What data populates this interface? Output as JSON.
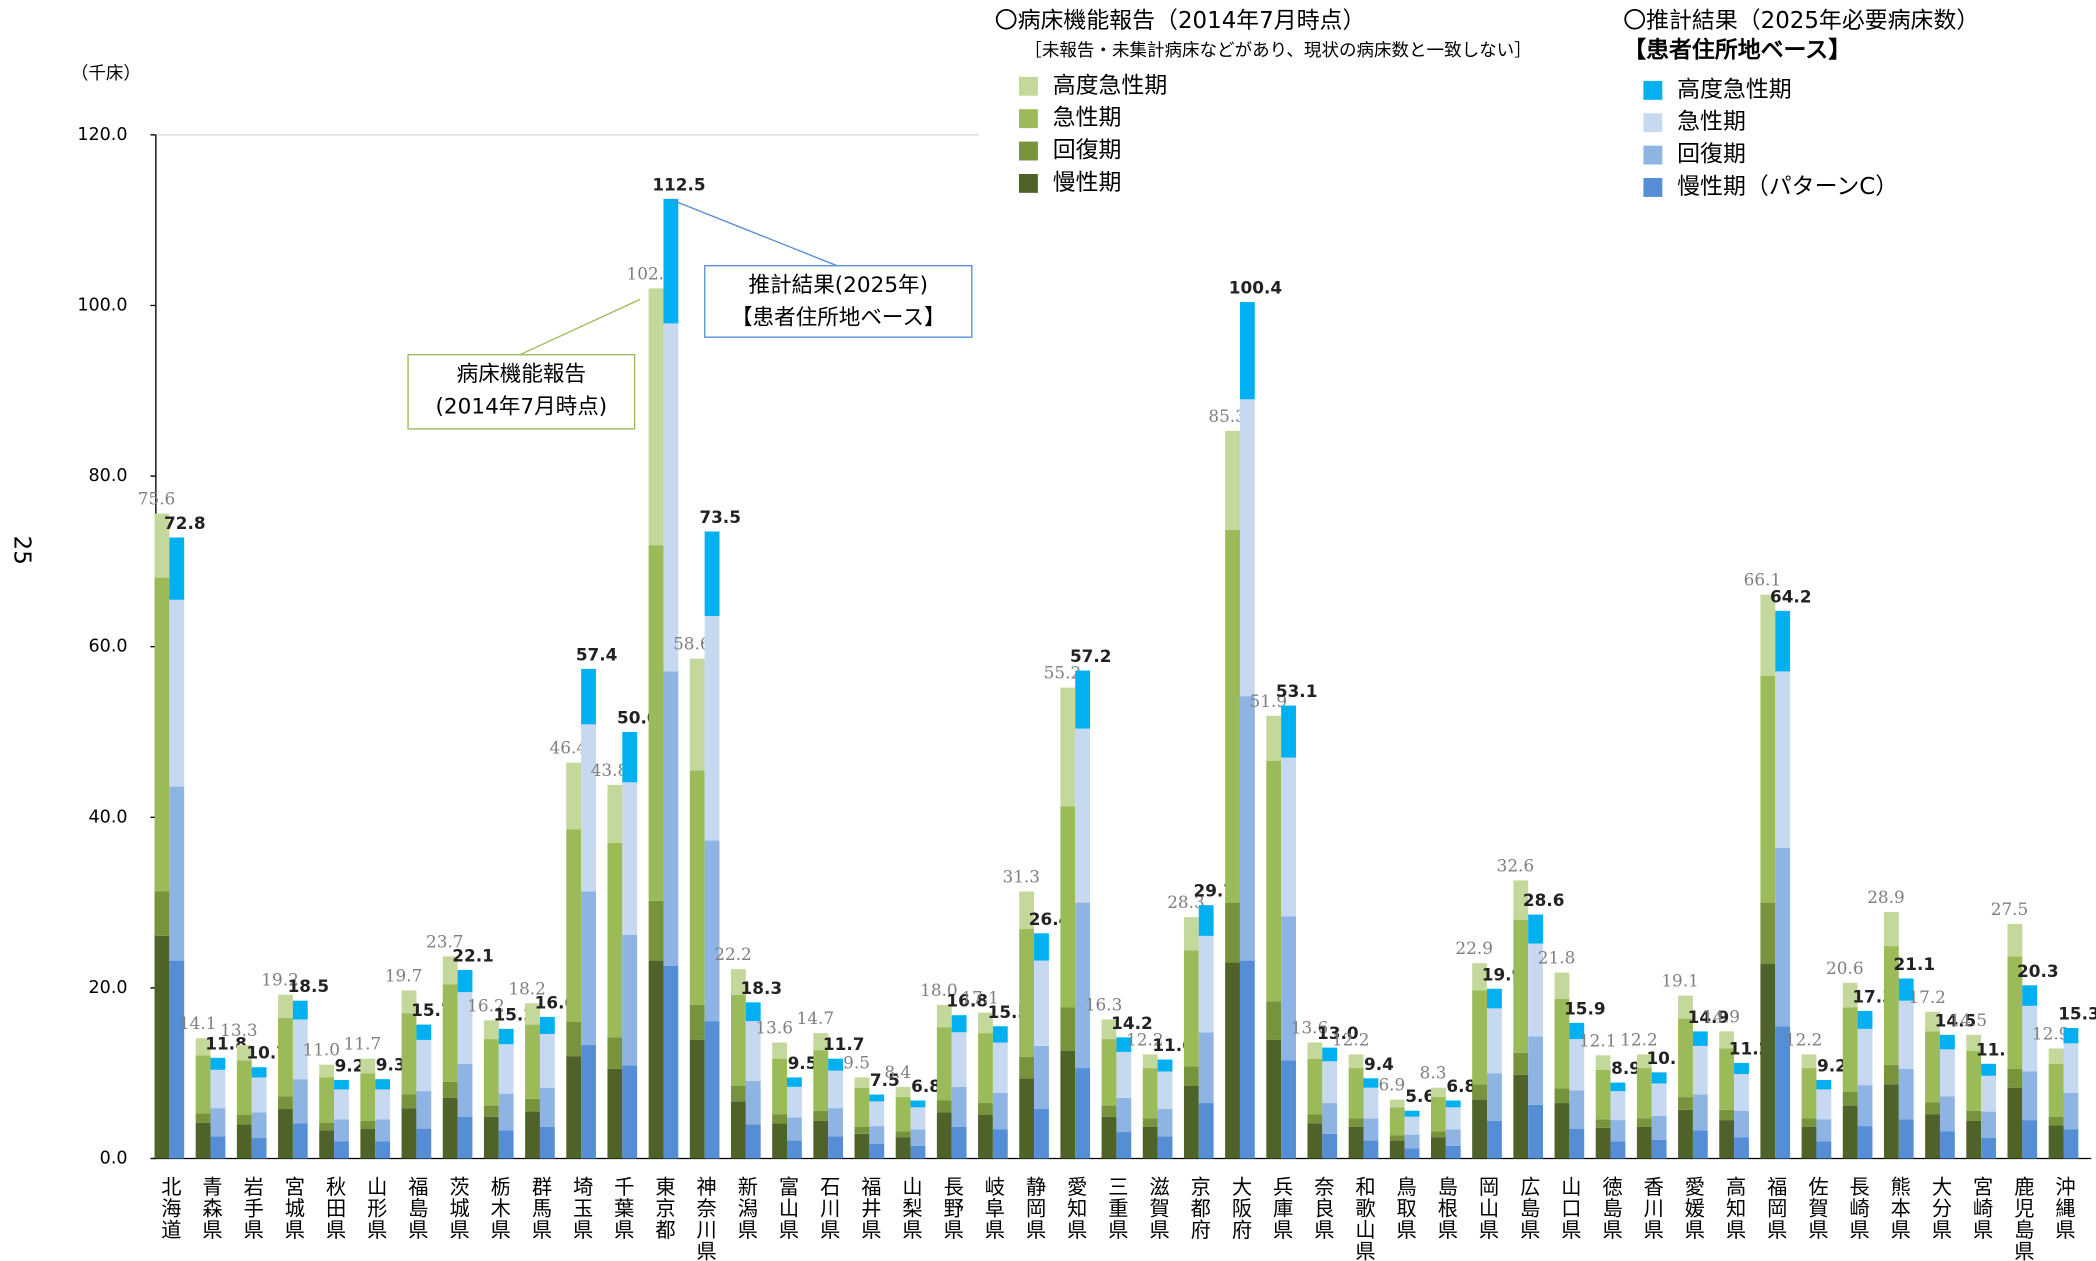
{
  "page_number": "25",
  "chart_data": {
    "type": "grouped-stacked-bar",
    "y_unit": "（千床）",
    "categories": [
      "北海道",
      "青森県",
      "岩手県",
      "宮城県",
      "秋田県",
      "山形県",
      "福島県",
      "茨城県",
      "栃木県",
      "群馬県",
      "埼玉県",
      "千葉県",
      "東京都",
      "神奈川県",
      "新潟県",
      "富山県",
      "石川県",
      "福井県",
      "山梨県",
      "長野県",
      "岐阜県",
      "静岡県",
      "愛知県",
      "三重県",
      "滋賀県",
      "京都府",
      "大阪府",
      "兵庫県",
      "奈良県",
      "和歌山県",
      "鳥取県",
      "島根県",
      "岡山県",
      "広島県",
      "山口県",
      "徳島県",
      "香川県",
      "愛媛県",
      "高知県",
      "福岡県",
      "佐賀県",
      "長崎県",
      "熊本県",
      "大分県",
      "宮崎県",
      "鹿児島県",
      "沖縄県"
    ],
    "ylim": [
      0,
      120
    ],
    "yticks": [
      {
        "value": 0,
        "label": "0.0"
      },
      {
        "value": 20,
        "label": "20.0"
      },
      {
        "value": 40,
        "label": "40.0"
      },
      {
        "value": 60,
        "label": "60.0"
      },
      {
        "value": 80,
        "label": "80.0"
      },
      {
        "value": 100,
        "label": "100.0"
      },
      {
        "value": 120,
        "label": "120.0"
      }
    ],
    "grid": false,
    "groups": [
      {
        "legend_title": "〇病床機能報告（2014年7月時点）",
        "legend_note": "［未報告・未集計病床などがあり、現状の病床数と一致しない］",
        "series": [
          {
            "name": "高度急性期",
            "color": "#c4d89b",
            "values": [
              7.5,
              2.0,
              1.8,
              2.7,
              1.5,
              1.7,
              2.7,
              3.3,
              2.2,
              2.5,
              7.8,
              6.8,
              30.1,
              13.1,
              3.0,
              1.9,
              2.0,
              1.2,
              1.2,
              2.6,
              2.4,
              4.4,
              13.9,
              2.3,
              1.6,
              3.9,
              11.6,
              5.3,
              1.9,
              1.6,
              0.9,
              1.1,
              3.2,
              4.6,
              3.1,
              1.7,
              1.6,
              2.7,
              2.0,
              9.5,
              1.6,
              2.9,
              4.0,
              2.3,
              1.9,
              3.8,
              1.8
            ]
          },
          {
            "name": "急性期",
            "color": "#9bbb59",
            "values": [
              36.8,
              6.8,
              6.4,
              9.2,
              5.3,
              5.6,
              9.5,
              11.4,
              7.8,
              8.7,
              22.6,
              22.8,
              41.7,
              27.5,
              10.7,
              6.5,
              7.1,
              4.6,
              4.0,
              8.6,
              8.2,
              15.0,
              23.6,
              7.8,
              5.9,
              13.6,
              43.7,
              28.2,
              6.5,
              5.9,
              3.3,
              4.0,
              11.0,
              15.6,
              10.5,
              5.8,
              5.9,
              9.2,
              7.2,
              26.6,
              5.9,
              9.9,
              13.9,
              8.3,
              7.0,
              13.2,
              6.2
            ]
          },
          {
            "name": "回復期",
            "color": "#77933c",
            "values": [
              5.2,
              1.1,
              1.1,
              1.5,
              0.9,
              0.9,
              1.6,
              1.9,
              1.3,
              1.5,
              4.0,
              3.7,
              7.0,
              4.1,
              1.8,
              1.1,
              1.2,
              0.8,
              0.7,
              1.4,
              1.4,
              2.5,
              5.1,
              1.3,
              1.0,
              2.3,
              7.0,
              4.5,
              1.1,
              1.0,
              0.6,
              0.7,
              1.8,
              2.6,
              1.7,
              1.0,
              1.0,
              1.5,
              1.2,
              7.2,
              1.0,
              1.6,
              2.3,
              1.4,
              1.2,
              2.2,
              1.0
            ]
          },
          {
            "name": "慢性期",
            "color": "#4f6228",
            "values": [
              26.1,
              4.2,
              4.0,
              5.8,
              3.3,
              3.5,
              5.9,
              7.1,
              4.9,
              5.5,
              12.0,
              10.5,
              23.2,
              13.9,
              6.7,
              4.1,
              4.4,
              2.9,
              2.5,
              5.4,
              5.1,
              9.4,
              12.6,
              4.9,
              3.7,
              8.5,
              23.0,
              13.9,
              4.1,
              3.7,
              2.1,
              2.5,
              6.9,
              9.8,
              6.5,
              3.6,
              3.7,
              5.7,
              4.5,
              22.8,
              3.7,
              6.2,
              8.7,
              5.2,
              4.4,
              8.3,
              3.9
            ]
          }
        ],
        "totals": {
          "values": [
            75.6,
            14.1,
            13.3,
            19.2,
            11,
            11.7,
            19.7,
            23.7,
            16.2,
            18.2,
            46.4,
            43.8,
            102,
            58.6,
            22.2,
            13.6,
            14.7,
            9.5,
            8.4,
            18,
            17.1,
            31.3,
            55.2,
            16.3,
            12.2,
            28.3,
            85.3,
            51.9,
            13.6,
            12.2,
            6.9,
            8.3,
            22.9,
            32.6,
            21.8,
            12.1,
            12.2,
            19.1,
            14.9,
            66.1,
            12.2,
            20.6,
            28.9,
            17.2,
            14.5,
            27.5,
            12.9
          ],
          "value_labels": [
            "75.6",
            "14.1",
            "13.3",
            "19.2",
            "11.0",
            "11.7",
            "19.7",
            "23.7",
            "16.2",
            "18.2",
            "46.4",
            "43.8",
            "102.0",
            "58.6",
            "22.2",
            "13.6",
            "14.7",
            "9.5",
            "8.4",
            "18.0",
            "17.1",
            "31.3",
            "55.2",
            "16.3",
            "12.2",
            "28.3",
            "85.3",
            "51.9",
            "13.6",
            "12.2",
            "6.9",
            "8.3",
            "22.9",
            "32.6",
            "21.8",
            "12.1",
            "12.2",
            "19.1",
            "14.9",
            "66.1",
            "12.2",
            "20.6",
            "28.9",
            "17.2",
            "14.5",
            "27.5",
            "12.9"
          ]
        }
      },
      {
        "legend_title": "〇推計結果（2025年必要病床数）",
        "legend_note": "【患者住所地ベース】",
        "series": [
          {
            "name": "高度急性期",
            "color": "#00b0f0",
            "values": [
              7.3,
              1.4,
              1.2,
              2.2,
              1.1,
              1.2,
              1.8,
              2.6,
              1.8,
              2.0,
              6.5,
              5.9,
              14.6,
              9.9,
              2.2,
              1.1,
              1.4,
              0.8,
              0.8,
              2.0,
              1.9,
              3.2,
              6.8,
              1.7,
              1.4,
              3.6,
              11.4,
              6.1,
              1.6,
              1.1,
              0.7,
              0.8,
              2.3,
              3.4,
              1.9,
              1.0,
              1.3,
              1.7,
              1.3,
              7.1,
              1.1,
              2.1,
              2.6,
              1.7,
              1.4,
              2.4,
              1.8
            ]
          },
          {
            "name": "急性期",
            "color": "#c6d9f1",
            "values": [
              21.9,
              4.5,
              4.1,
              7.0,
              3.5,
              3.5,
              6.0,
              8.4,
              5.8,
              6.3,
              19.6,
              17.9,
              40.8,
              26.3,
              7.0,
              3.6,
              4.4,
              2.9,
              2.6,
              6.4,
              5.9,
              10.0,
              20.4,
              5.4,
              4.4,
              11.3,
              34.8,
              18.6,
              4.9,
              3.6,
              2.1,
              2.6,
              7.6,
              10.9,
              6.0,
              3.4,
              3.8,
              5.7,
              4.3,
              20.7,
              3.5,
              6.6,
              8.0,
              5.5,
              4.2,
              7.7,
              5.8
            ]
          },
          {
            "name": "回復期",
            "color": "#8eb4e3",
            "values": [
              20.4,
              3.3,
              3.0,
              5.2,
              2.6,
              2.6,
              4.4,
              6.2,
              4.3,
              4.6,
              18.0,
              15.3,
              34.5,
              21.2,
              5.1,
              2.7,
              3.3,
              2.1,
              1.9,
              4.7,
              4.3,
              7.4,
              19.4,
              4.0,
              3.2,
              8.3,
              31.0,
              16.9,
              3.6,
              2.6,
              1.6,
              1.9,
              5.6,
              8.0,
              4.5,
              2.5,
              2.8,
              4.2,
              3.1,
              20.9,
              2.6,
              4.8,
              5.9,
              4.1,
              3.1,
              5.7,
              4.3
            ]
          },
          {
            "name": "慢性期（パターンC）",
            "color": "#558ed5",
            "values": [
              23.2,
              2.6,
              2.4,
              4.1,
              2.0,
              2.0,
              3.5,
              4.9,
              3.3,
              3.7,
              13.3,
              10.9,
              22.6,
              16.1,
              4.0,
              2.1,
              2.6,
              1.7,
              1.5,
              3.7,
              3.4,
              5.8,
              10.6,
              3.1,
              2.6,
              6.5,
              23.2,
              11.5,
              2.9,
              2.1,
              1.2,
              1.5,
              4.4,
              6.3,
              3.5,
              2.0,
              2.2,
              3.3,
              2.5,
              15.5,
              2.0,
              3.8,
              4.6,
              3.2,
              2.4,
              4.5,
              3.4
            ]
          }
        ],
        "totals": {
          "values": [
            72.8,
            11.8,
            10.7,
            18.5,
            9.2,
            9.3,
            15.7,
            22.1,
            15.2,
            16.6,
            57.4,
            50,
            112.5,
            73.5,
            18.3,
            9.5,
            11.7,
            7.5,
            6.8,
            16.8,
            15.5,
            26.4,
            57.2,
            14.2,
            11.6,
            29.7,
            100.4,
            53.1,
            13,
            9.4,
            5.6,
            6.8,
            19.9,
            28.6,
            15.9,
            8.9,
            10.1,
            14.9,
            11.2,
            64.2,
            9.2,
            17.3,
            21.1,
            14.5,
            11.1,
            20.3,
            15.3
          ],
          "value_labels": [
            "72.8",
            "11.8",
            "10.7",
            "18.5",
            "9.2",
            "9.3",
            "15.7",
            "22.1",
            "15.2",
            "16.6",
            "57.4",
            "50.0",
            "112.5",
            "73.5",
            "18.3",
            "9.5",
            "11.7",
            "7.5",
            "6.8",
            "16.8",
            "15.5",
            "26.4",
            "57.2",
            "14.2",
            "11.6",
            "29.7",
            "100.4",
            "53.1",
            "13.0",
            "9.4",
            "5.6",
            "6.8",
            "19.9",
            "28.6",
            "15.9",
            "8.9",
            "10.1",
            "14.9",
            "11.2",
            "64.2",
            "9.2",
            "17.3",
            "21.1",
            "14.5",
            "11.1",
            "20.3",
            "15.3"
          ]
        }
      }
    ],
    "annotations": [
      {
        "lines": [
          "病床機能報告",
          "(2014年7月時点)"
        ]
      },
      {
        "lines": [
          "推計結果(2025年)",
          "【患者住所地ベース】"
        ]
      }
    ]
  }
}
